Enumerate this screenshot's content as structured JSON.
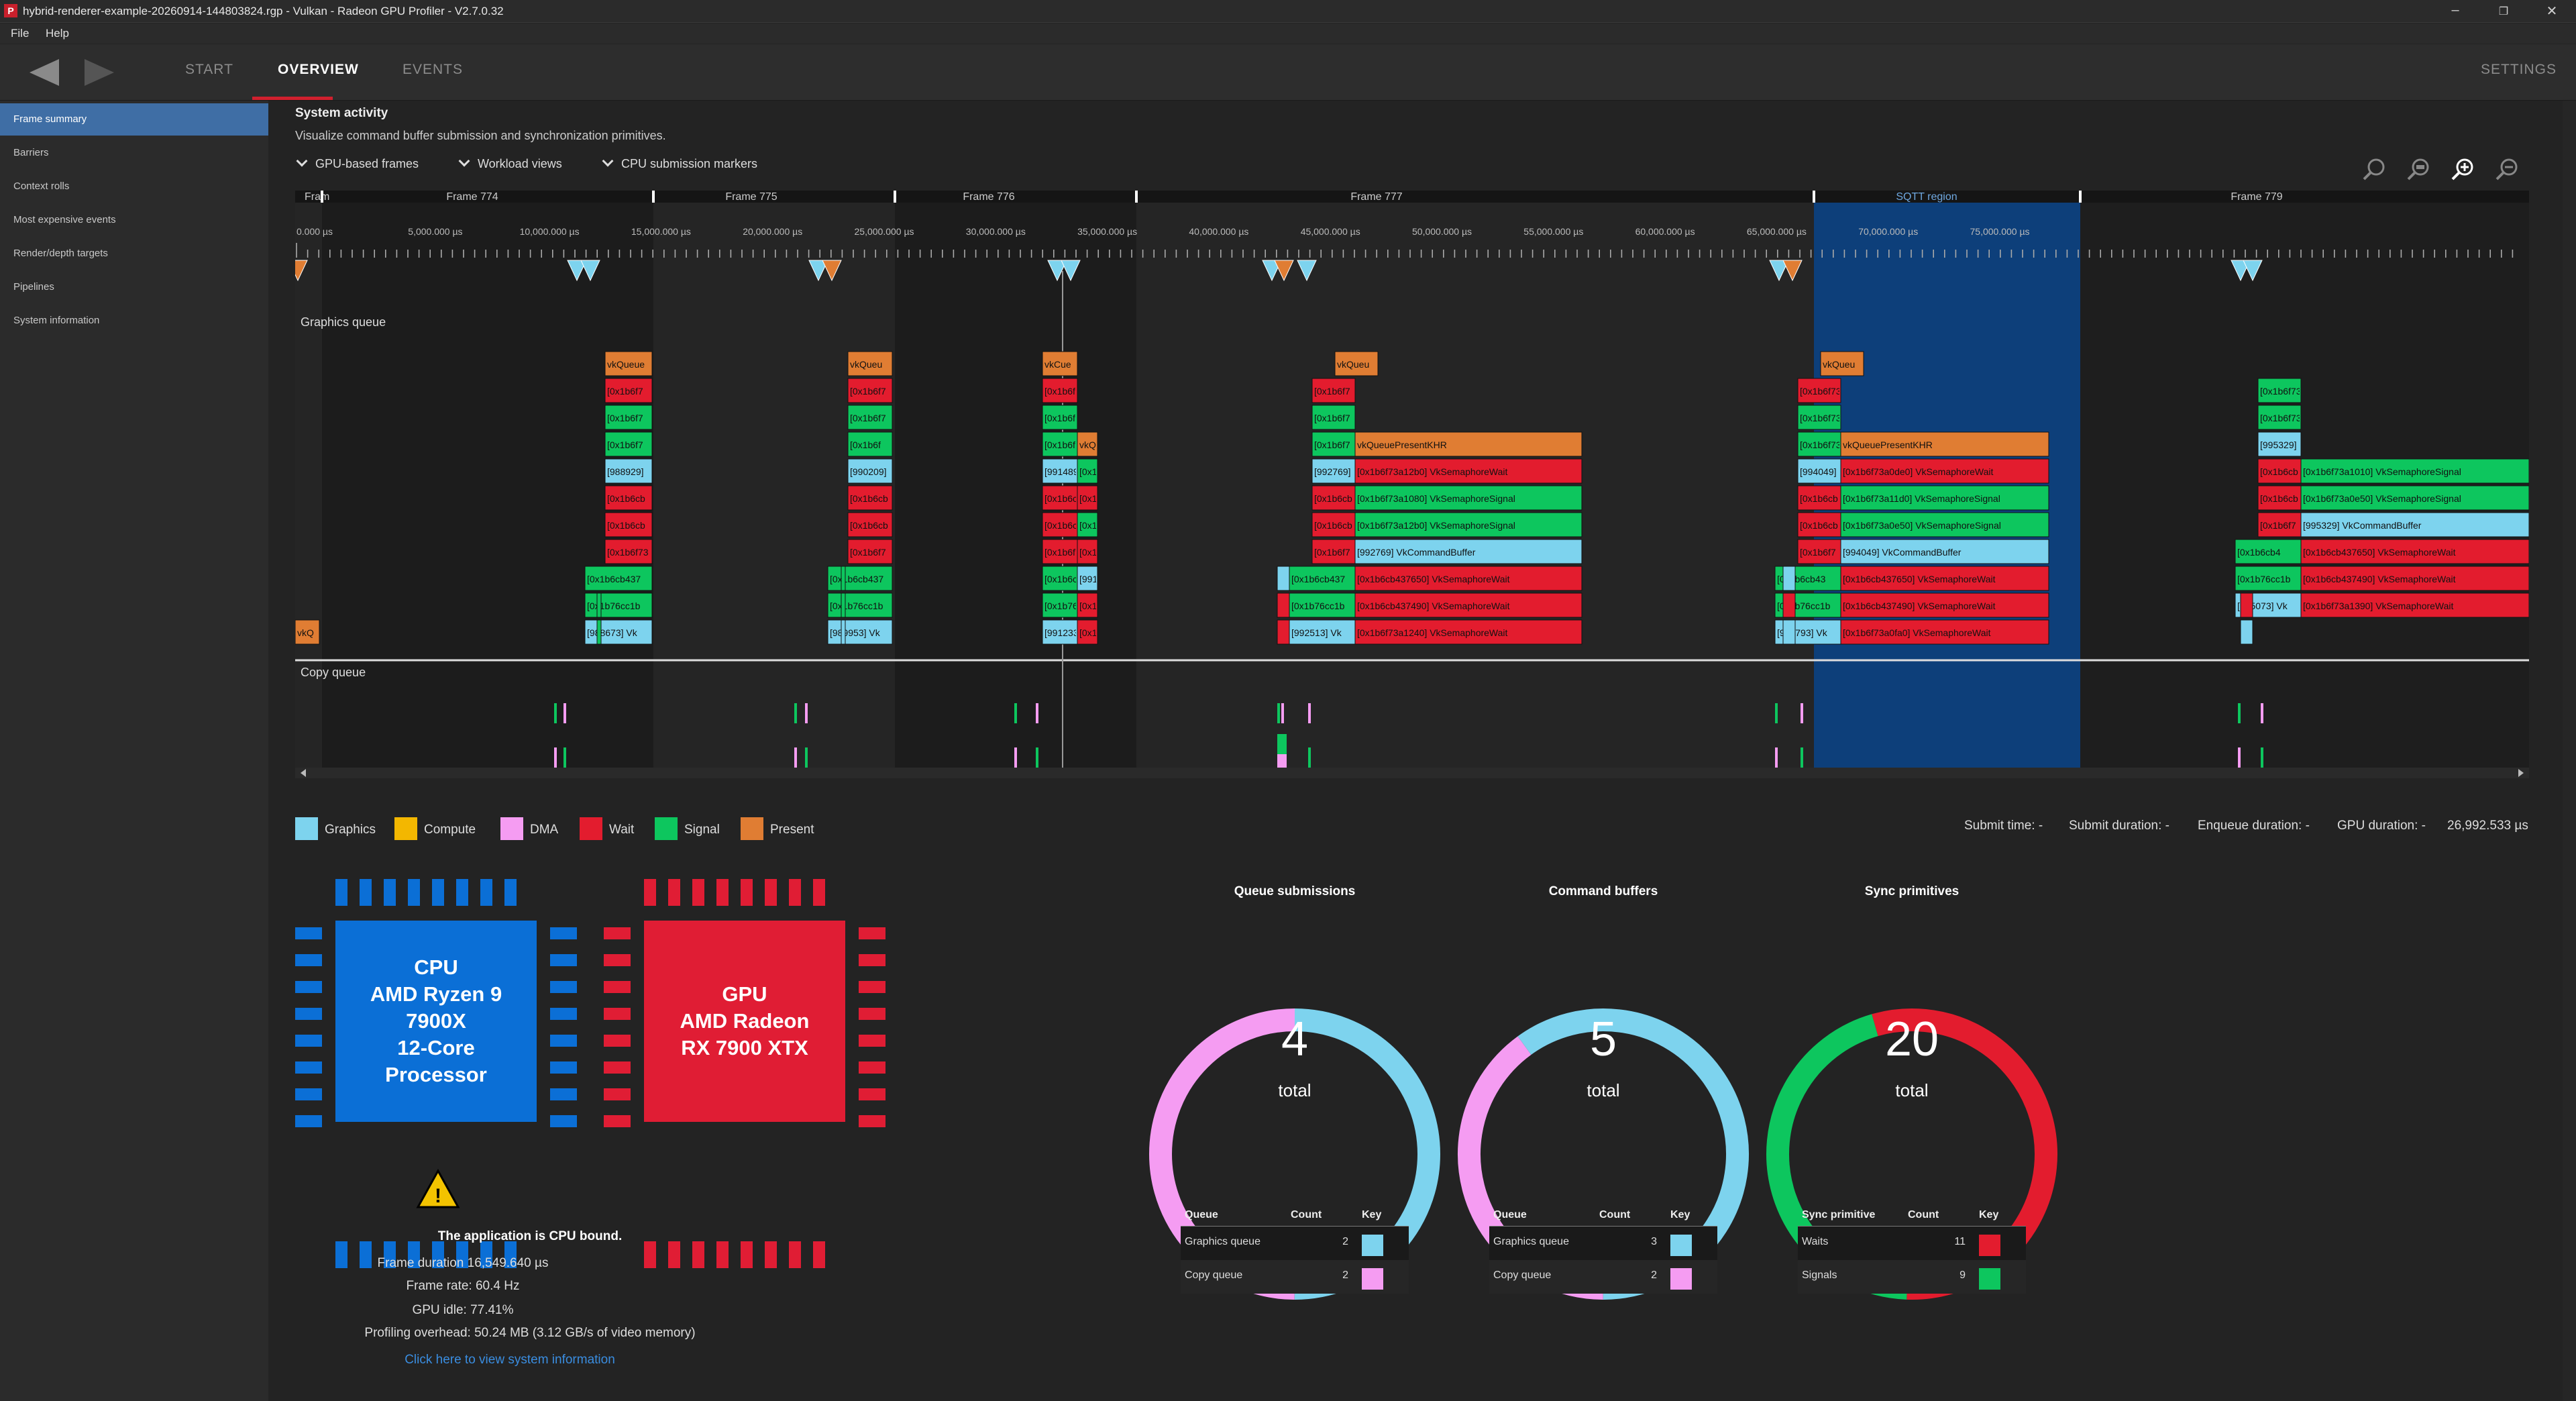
{
  "window": {
    "title": "hybrid-renderer-example-20260914-144803824.rgp - Vulkan - Radeon GPU Profiler - V2.7.0.32",
    "app_icon": "P"
  },
  "menu": {
    "file": "File",
    "help": "Help"
  },
  "nav": {
    "start": "START",
    "overview": "OVERVIEW",
    "events": "EVENTS",
    "settings": "SETTINGS"
  },
  "sidebar": {
    "items": [
      {
        "label": "Frame summary",
        "active": true
      },
      {
        "label": "Barriers"
      },
      {
        "label": "Context rolls"
      },
      {
        "label": "Most expensive events"
      },
      {
        "label": "Render/depth targets"
      },
      {
        "label": "Pipelines"
      },
      {
        "label": "System information"
      }
    ]
  },
  "system_activity": {
    "title": "System activity",
    "description": "Visualize command buffer submission and synchronization primitives.",
    "dropdowns": [
      "GPU-based frames",
      "Workload views",
      "CPU submission markers"
    ]
  },
  "timeline": {
    "frames": [
      "Fram",
      "Frame 774",
      "Frame 775",
      "Frame 776",
      "Frame 777",
      "SQTT region",
      "Frame 779"
    ],
    "time_ticks": [
      "0.000 µs",
      "5,000.000 µs",
      "10,000.000 µs",
      "15,000.000 µs",
      "20,000.000 µs",
      "25,000.000 µs",
      "30,000.000 µs",
      "35,000.000 µs",
      "40,000.000 µs",
      "45,000.000 µs",
      "50,000.000 µs",
      "55,000.000 µs",
      "60,000.000 µs",
      "65,000.000 µs",
      "70,000.000 µs",
      "75,000.000 µs"
    ],
    "graphics_queue_label": "Graphics queue",
    "copy_queue_label": "Copy queue",
    "blocks": {
      "f774": [
        "vkQueue",
        "[0x1b6f7",
        "[0x1b6f7",
        "[0x1b6f7",
        "[988929]",
        "[0x1b6cb",
        "[0x1b6cb",
        "[0x1b6f73",
        "[0x1b6cb437",
        "[0x1b76cc1b",
        "[988673] Vk"
      ],
      "f775": [
        "vkQueu",
        "[0x1b6f7",
        "[0x1b6f7",
        "[0x1b6f",
        "[990209]",
        "[0x1b6cb",
        "[0x1b6cb",
        "[0x1b6f7",
        "[0x1b6cb437",
        "[0x1b76cc1b",
        "[989953] Vk"
      ],
      "f776": [
        "vkCue",
        "[0x1b6f",
        "[0x1b6f",
        "[0x1b6f",
        "vkQ",
        "[991489",
        "[0x1b6cl",
        "[0x1",
        "[0x1b6cl",
        "[0x1",
        "[0x1b6f7",
        "[0x1",
        "[991",
        "[0x1b6cb4",
        "[0x1",
        "[0x1b76cc1b",
        "[0x1",
        "[991233] Vk",
        "[0x1"
      ],
      "f777": [
        "vkQueu",
        "[0x1b6f7",
        "[0x1b6f7",
        "[0x1b6f7",
        "vkQueuePresentKHR",
        "[992769]",
        "[0x1b6f73a12b0] VkSemaphoreWait",
        "[0x1b6cb",
        "[0x1b6f73a1080] VkSemaphoreSignal",
        "[0x1b6cb",
        "[0x1b6f73a12b0] VkSemaphoreSignal",
        "[0x1b6f7",
        "[992769] VkCommandBuffer",
        "[0x1b6cb437",
        "[0x1b6cb437650] VkSemaphoreWait",
        "[0x1b76cc1b",
        "[0x1b6cb437490] VkSemaphoreWait",
        "[992513] Vk",
        "[0x1b6f73a1240] VkSemaphoreWait"
      ],
      "f778": [
        "vkQueu",
        "[0x1b6f73",
        "[0x1b6f73",
        "[0x1b6f73",
        "vkQueuePresentKHR",
        "[994049]",
        "[0x1b6f73a0de0] VkSemaphoreWait",
        "[0x1b6cb",
        "[0x1b6f73a11d0] VkSemaphoreSignal",
        "[0x1b6cb",
        "[0x1b6f73a0e50] VkSemaphoreSignal",
        "[0x1b6f7",
        "[994049] VkCommandBuffer",
        "[0x1b6cb43",
        "[0x1b6cb437650] VkSemaphoreWait",
        "[0x1b76cc1b",
        "[0x1b6cb437490] VkSemaphoreWait",
        "[993793] Vk",
        "[0x1b6f73a0fa0] VkSemaphoreWait"
      ],
      "f779": [
        "[0x1b6f73",
        "[0x1b6f73",
        "[995329]",
        "[0x1b6cb",
        "[0x1b6f73a1010] VkSemaphoreSignal",
        "[0x1b6cb",
        "[0x1b6f73a0e50] VkSemaphoreSignal",
        "[0x1b6f7",
        "[995329] VkCommandBuffer",
        "[0x1b6cb4",
        "[0x1b6cb437650] VkSemaphoreWait",
        "[0x1b76cc1b",
        "[0x1b6cb437490] VkSemaphoreWait",
        "[995073] Vk",
        "[0x1b6f73a1390] VkSemaphoreWait"
      ],
      "first": "vkQ"
    }
  },
  "legend": {
    "items": [
      {
        "label": "Graphics",
        "color": "#7dd3ee"
      },
      {
        "label": "Compute",
        "color": "#f3b700"
      },
      {
        "label": "DMA",
        "color": "#f59cf2"
      },
      {
        "label": "Wait",
        "color": "#e31c2e"
      },
      {
        "label": "Signal",
        "color": "#0dc65e"
      },
      {
        "label": "Present",
        "color": "#e07d33"
      }
    ]
  },
  "stats": {
    "submit_time": "Submit time:  -",
    "submit_duration": "Submit duration:  -",
    "enqueue_duration": "Enqueue duration:  -",
    "gpu_duration_label": "GPU duration:  -",
    "gpu_total": "26,992.533 µs"
  },
  "cpu": {
    "label": "CPU\nAMD Ryzen 9\n7900X\n12-Core\nProcessor",
    "color": "#0b6fd6"
  },
  "gpu": {
    "label": "GPU\nAMD Radeon\nRX 7900 XTX",
    "color": "#e01d34"
  },
  "summary": {
    "bound": "The application is CPU bound.",
    "frame_duration": "Frame duration 16,549.640 µs",
    "frame_rate": "Frame rate: 60.4 Hz",
    "gpu_idle": "GPU idle: 77.41%",
    "overhead": "Profiling overhead: 50.24 MB (3.12 GB/s of video memory)",
    "link": "Click here to view system information"
  },
  "queue_submissions": {
    "title": "Queue submissions",
    "total": "4",
    "total_label": "total",
    "headers": [
      "Queue",
      "Count",
      "Key"
    ],
    "rows": [
      {
        "name": "Graphics queue",
        "count": "2",
        "color": "#7dd3ee"
      },
      {
        "name": "Copy queue",
        "count": "2",
        "color": "#f59cf2"
      }
    ]
  },
  "command_buffers": {
    "title": "Command buffers",
    "total": "5",
    "total_label": "total",
    "headers": [
      "Queue",
      "Count",
      "Key"
    ],
    "rows": [
      {
        "name": "Graphics queue",
        "count": "3",
        "color": "#7dd3ee"
      },
      {
        "name": "Copy queue",
        "count": "2",
        "color": "#f59cf2"
      }
    ]
  },
  "sync_primitives": {
    "title": "Sync primitives",
    "total": "20",
    "total_label": "total",
    "headers": [
      "Sync primitive",
      "Count",
      "Key"
    ],
    "rows": [
      {
        "name": "Waits",
        "count": "11",
        "color": "#e31c2e"
      },
      {
        "name": "Signals",
        "count": "9",
        "color": "#0dc65e"
      }
    ]
  }
}
